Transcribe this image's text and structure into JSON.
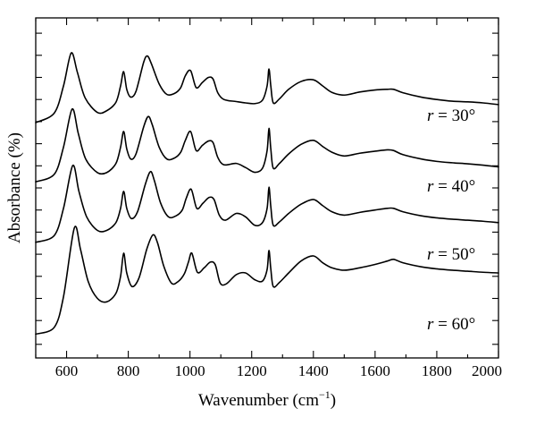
{
  "chart_data": {
    "type": "line",
    "title": "",
    "xlabel": "Wavenumber (cm",
    "xlabel_sup": "−1",
    "xlabel_close": ")",
    "ylabel": "Absorbance (%)",
    "xlim": [
      500,
      2000
    ],
    "ylim": [
      0,
      1
    ],
    "grid": false,
    "legend": "none",
    "x_ticks": [
      600,
      800,
      1000,
      1200,
      1400,
      1600,
      1800,
      2000
    ],
    "x_tick_labels": [
      "600",
      "800",
      "1000",
      "1200",
      "1400",
      "1600",
      "1800",
      "2000"
    ],
    "y_ticks": [
      0.04,
      0.11,
      0.175,
      0.24,
      0.305,
      0.37,
      0.435,
      0.5,
      0.565,
      0.63,
      0.695,
      0.76,
      0.825,
      0.89,
      0.955
    ],
    "series": [
      {
        "label_var": "r",
        "label_value": " = 30°",
        "x": [
          500,
          560,
          590,
          615,
          635,
          660,
          700,
          730,
          760,
          775,
          785,
          795,
          808,
          825,
          850,
          862,
          875,
          900,
          925,
          950,
          970,
          985,
          1002,
          1020,
          1040,
          1060,
          1075,
          1090,
          1110,
          1150,
          1180,
          1210,
          1235,
          1250,
          1256,
          1262,
          1270,
          1290,
          1320,
          1360,
          1400,
          1430,
          1460,
          1500,
          1550,
          1600,
          1640,
          1660,
          1690,
          1750,
          1800,
          1850,
          1900,
          1950,
          2000
        ],
        "y": [
          0.692,
          0.72,
          0.8,
          0.897,
          0.84,
          0.765,
          0.722,
          0.727,
          0.752,
          0.8,
          0.842,
          0.79,
          0.767,
          0.784,
          0.87,
          0.888,
          0.865,
          0.806,
          0.775,
          0.778,
          0.795,
          0.83,
          0.845,
          0.795,
          0.81,
          0.825,
          0.82,
          0.78,
          0.76,
          0.754,
          0.75,
          0.748,
          0.758,
          0.8,
          0.85,
          0.8,
          0.75,
          0.762,
          0.79,
          0.813,
          0.818,
          0.8,
          0.781,
          0.773,
          0.782,
          0.788,
          0.79,
          0.79,
          0.78,
          0.767,
          0.76,
          0.755,
          0.753,
          0.75,
          0.745
        ]
      },
      {
        "label_var": "r",
        "label_value": " = 40°",
        "x": [
          500,
          560,
          590,
          618,
          638,
          662,
          700,
          730,
          760,
          775,
          785,
          795,
          808,
          825,
          850,
          865,
          878,
          900,
          925,
          950,
          970,
          985,
          1002,
          1020,
          1040,
          1060,
          1075,
          1090,
          1110,
          1150,
          1180,
          1210,
          1235,
          1250,
          1256,
          1262,
          1270,
          1290,
          1320,
          1360,
          1400,
          1430,
          1460,
          1500,
          1550,
          1600,
          1640,
          1660,
          1690,
          1750,
          1800,
          1850,
          1900,
          1950,
          2000
        ],
        "y": [
          0.518,
          0.54,
          0.62,
          0.732,
          0.66,
          0.585,
          0.545,
          0.545,
          0.572,
          0.62,
          0.666,
          0.615,
          0.585,
          0.6,
          0.68,
          0.71,
          0.685,
          0.62,
          0.585,
          0.588,
          0.605,
          0.64,
          0.666,
          0.61,
          0.625,
          0.638,
          0.633,
          0.59,
          0.568,
          0.572,
          0.56,
          0.546,
          0.558,
          0.61,
          0.675,
          0.615,
          0.558,
          0.572,
          0.6,
          0.628,
          0.64,
          0.622,
          0.605,
          0.594,
          0.602,
          0.608,
          0.612,
          0.61,
          0.598,
          0.585,
          0.578,
          0.574,
          0.571,
          0.567,
          0.562
        ]
      },
      {
        "label_var": "r",
        "label_value": " = 50°",
        "x": [
          500,
          560,
          590,
          620,
          640,
          665,
          700,
          730,
          760,
          775,
          785,
          795,
          810,
          830,
          855,
          872,
          885,
          905,
          930,
          955,
          975,
          988,
          1004,
          1022,
          1042,
          1062,
          1078,
          1095,
          1115,
          1150,
          1180,
          1210,
          1235,
          1250,
          1256,
          1262,
          1270,
          1290,
          1320,
          1360,
          1400,
          1430,
          1460,
          1500,
          1550,
          1600,
          1640,
          1660,
          1690,
          1750,
          1800,
          1850,
          1900,
          1950,
          2000
        ],
        "y": [
          0.34,
          0.36,
          0.44,
          0.566,
          0.49,
          0.415,
          0.375,
          0.375,
          0.398,
          0.44,
          0.49,
          0.44,
          0.41,
          0.43,
          0.51,
          0.548,
          0.52,
          0.455,
          0.415,
          0.418,
          0.435,
          0.47,
          0.496,
          0.44,
          0.455,
          0.472,
          0.466,
          0.42,
          0.405,
          0.425,
          0.415,
          0.39,
          0.398,
          0.44,
          0.502,
          0.445,
          0.39,
          0.4,
          0.425,
          0.452,
          0.466,
          0.448,
          0.43,
          0.42,
          0.428,
          0.435,
          0.44,
          0.44,
          0.43,
          0.418,
          0.412,
          0.408,
          0.405,
          0.402,
          0.398
        ]
      },
      {
        "label_var": "r",
        "label_value": " = 60°",
        "x": [
          500,
          560,
          590,
          625,
          645,
          670,
          700,
          730,
          760,
          775,
          785,
          795,
          812,
          835,
          860,
          880,
          895,
          915,
          940,
          962,
          982,
          995,
          1006,
          1024,
          1046,
          1066,
          1082,
          1098,
          1118,
          1150,
          1180,
          1210,
          1235,
          1250,
          1256,
          1262,
          1270,
          1290,
          1320,
          1360,
          1400,
          1430,
          1460,
          1500,
          1550,
          1600,
          1640,
          1660,
          1690,
          1750,
          1800,
          1850,
          1900,
          1950,
          2000
        ],
        "y": [
          0.07,
          0.09,
          0.18,
          0.382,
          0.32,
          0.225,
          0.175,
          0.165,
          0.19,
          0.24,
          0.308,
          0.25,
          0.21,
          0.236,
          0.32,
          0.362,
          0.338,
          0.27,
          0.22,
          0.225,
          0.248,
          0.282,
          0.308,
          0.252,
          0.265,
          0.282,
          0.274,
          0.22,
          0.218,
          0.245,
          0.25,
          0.23,
          0.226,
          0.26,
          0.316,
          0.262,
          0.21,
          0.222,
          0.25,
          0.285,
          0.3,
          0.28,
          0.265,
          0.258,
          0.265,
          0.275,
          0.285,
          0.29,
          0.28,
          0.268,
          0.262,
          0.258,
          0.255,
          0.252,
          0.25
        ]
      }
    ]
  }
}
